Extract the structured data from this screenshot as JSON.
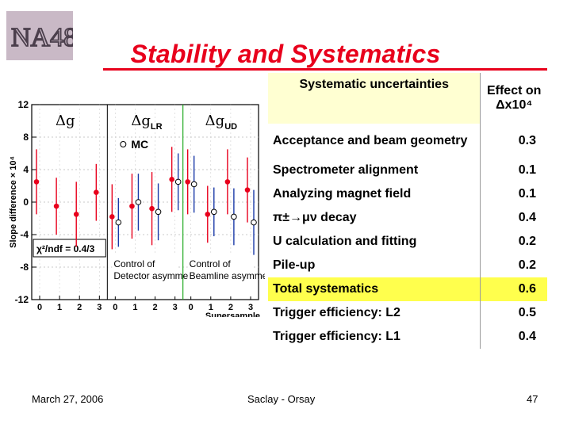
{
  "slide": {
    "logo_text": "NA48",
    "title": "Stability and Systematics",
    "footer_date": "March 27, 2006",
    "footer_center": "Saclay - Orsay",
    "page_number": "47"
  },
  "table": {
    "header_left": "Systematic uncertainties",
    "header_right_line1": "Effect on",
    "header_right_line2": "Δx10⁴",
    "rows": [
      {
        "label": "Acceptance and beam geometry",
        "value": "0.3"
      },
      {
        "label": "Spectrometer alignment",
        "value": "0.1"
      },
      {
        "label": "Analyzing magnet field",
        "value": "0.1"
      },
      {
        "label": "π±→μν decay",
        "value": "0.4"
      },
      {
        "label": "U calculation and fitting",
        "value": "0.2"
      },
      {
        "label": "Pile-up",
        "value": "0.2"
      },
      {
        "label": "Total systematics",
        "value": "0.6"
      },
      {
        "label": "Trigger efficiency: L2",
        "value": "0.5"
      },
      {
        "label": "Trigger efficiency: L1",
        "value": "0.4"
      }
    ]
  },
  "chart_data": {
    "type": "scatter",
    "ylabel": "Slope difference × 10⁴",
    "xlabel": "Supersample",
    "ylim": [
      -12,
      12
    ],
    "yticks": [
      -12,
      -8,
      -4,
      0,
      4,
      8,
      12
    ],
    "panels": [
      {
        "label": "Δg",
        "xticks": [
          "0",
          "1",
          "2",
          "3"
        ]
      },
      {
        "label": "Δg_LR",
        "xticks": [
          "0",
          "1",
          "2",
          "3"
        ],
        "note": "Control of Detector asymmetry"
      },
      {
        "label": "Δg_UD",
        "xticks": [
          "0",
          "1",
          "2",
          "3"
        ],
        "note": "Control of Beamline asymmetry"
      }
    ],
    "legend_mc": "MC",
    "fit_label": "χ²/ndf = 0.4/3",
    "series": [
      {
        "name": "",
        "color": "#e8001c",
        "points": [
          {
            "panel": 0,
            "x": 0,
            "y": 2.5,
            "err": 4.0
          },
          {
            "panel": 0,
            "x": 1,
            "y": -0.5,
            "err": 3.5
          },
          {
            "panel": 0,
            "x": 2,
            "y": -1.5,
            "err": 4.0
          },
          {
            "panel": 0,
            "x": 3,
            "y": 1.2,
            "err": 3.5
          },
          {
            "panel": 1,
            "x": 0,
            "y": -1.8,
            "err": 4.0
          },
          {
            "panel": 1,
            "x": 1,
            "y": -0.5,
            "err": 4.0
          },
          {
            "panel": 1,
            "x": 2,
            "y": -0.8,
            "err": 4.5
          },
          {
            "panel": 1,
            "x": 3,
            "y": 2.8,
            "err": 4.0
          },
          {
            "panel": 2,
            "x": 0,
            "y": 2.5,
            "err": 4.0
          },
          {
            "panel": 2,
            "x": 1,
            "y": -1.5,
            "err": 3.5
          },
          {
            "panel": 2,
            "x": 2,
            "y": 2.5,
            "err": 4.0
          },
          {
            "panel": 2,
            "x": 3,
            "y": 1.5,
            "err": 4.0
          }
        ]
      },
      {
        "name": "MC",
        "color": "#1a3aa8",
        "points": [
          {
            "panel": 1,
            "x": 0,
            "y": -2.5,
            "err": 3.0
          },
          {
            "panel": 1,
            "x": 1,
            "y": 0.0,
            "err": 3.5
          },
          {
            "panel": 1,
            "x": 2,
            "y": -1.2,
            "err": 3.5
          },
          {
            "panel": 1,
            "x": 3,
            "y": 2.5,
            "err": 3.5
          },
          {
            "panel": 2,
            "x": 0,
            "y": 2.2,
            "err": 3.5
          },
          {
            "panel": 2,
            "x": 1,
            "y": -1.2,
            "err": 3.0
          },
          {
            "panel": 2,
            "x": 2,
            "y": -1.8,
            "err": 3.5
          },
          {
            "panel": 2,
            "x": 3,
            "y": -2.5,
            "err": 4.0
          }
        ]
      }
    ]
  }
}
